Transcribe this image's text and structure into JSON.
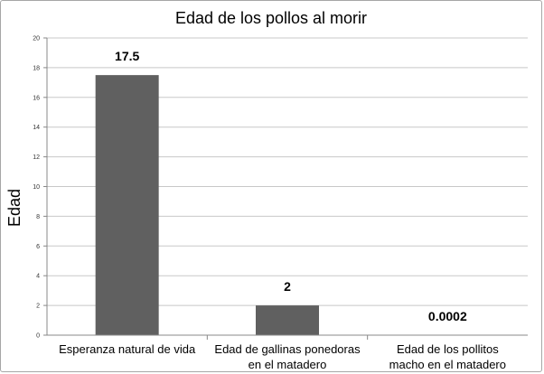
{
  "chart_data": {
    "type": "bar",
    "title": "Edad de los pollos al morir",
    "xlabel": "",
    "ylabel": "Edad",
    "ylim": [
      0,
      20
    ],
    "yticks": [
      0,
      2,
      4,
      6,
      8,
      10,
      12,
      14,
      16,
      18,
      20
    ],
    "grid": true,
    "categories": [
      [
        "Esperanza natural de vida"
      ],
      [
        "Edad de gallinas ponedoras",
        "en el matadero"
      ],
      [
        "Edad de los pollitos",
        "macho en el matadero"
      ]
    ],
    "values": [
      17.5,
      2,
      0.0002
    ],
    "data_labels": [
      "17.5",
      "2",
      "0.0002"
    ],
    "bar_color": "#606060",
    "grid_color": "#c8c8c8"
  }
}
